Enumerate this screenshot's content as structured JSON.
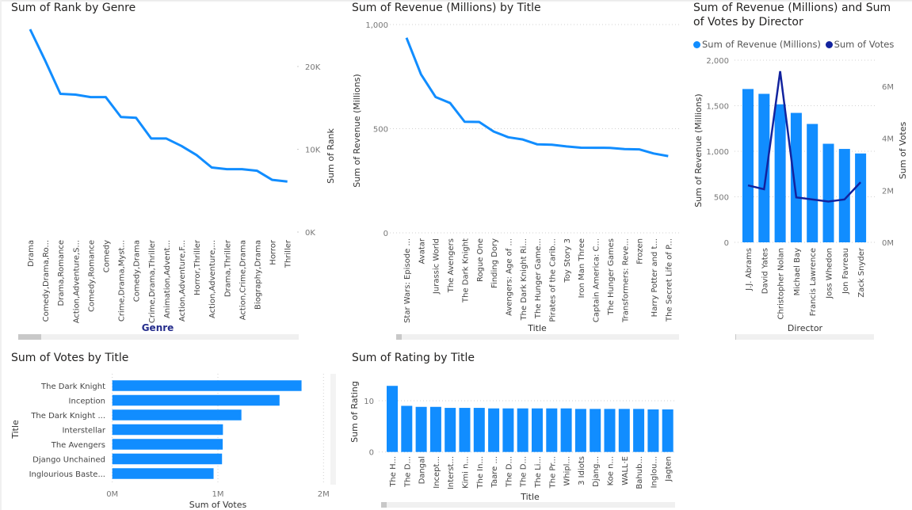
{
  "colors": {
    "bar": "#118DFF",
    "line": "#118DFF",
    "line2": "#12239E",
    "genre_axis_title": "#252D8C"
  },
  "chart_data": [
    {
      "id": "rank_by_genre",
      "type": "line",
      "title": "Sum of Rank by Genre",
      "xlabel": "Genre",
      "ylabel": "Sum of Rank",
      "y_axis_side": "right",
      "ylim": [
        0,
        25000
      ],
      "yticks": [
        {
          "v": 0,
          "label": "0K"
        },
        {
          "v": 10000,
          "label": "10K"
        },
        {
          "v": 20000,
          "label": "20K"
        }
      ],
      "grid": false,
      "categories": [
        "Drama",
        "Comedy,Drama,Ro...",
        "Drama,Romance",
        "Action,Adventure,S...",
        "Comedy,Romance",
        "Comedy",
        "Crime,Drama,Myst...",
        "Comedy,Drama",
        "Crime,Drama,Thriller",
        "Animation,Advent...",
        "Action,Adventure,F...",
        "Horror,Thriller",
        "Action,Adventure,...",
        "Drama,Thriller",
        "Action,Crime,Drama",
        "Biography,Drama",
        "Horror",
        "Thriller"
      ],
      "values": [
        24500,
        20700,
        16700,
        16600,
        16300,
        16300,
        13900,
        13800,
        11300,
        11300,
        10400,
        9300,
        7800,
        7600,
        7600,
        7400,
        6300,
        6100
      ],
      "scrollbar": "horizontal"
    },
    {
      "id": "revenue_by_title",
      "type": "line",
      "title": "Sum of Revenue (Millions) by Title",
      "xlabel": "Title",
      "ylabel": "Sum of Revenue (Millions)",
      "ylim": [
        0,
        1000
      ],
      "yticks": [
        {
          "v": 0,
          "label": "0"
        },
        {
          "v": 500,
          "label": "500"
        },
        {
          "v": 1000,
          "label": "1,000"
        }
      ],
      "grid": true,
      "categories": [
        "Star Wars: Episode ...",
        "Avatar",
        "Jurassic World",
        "The Avengers",
        "The Dark Knight",
        "Rogue One",
        "Finding Dory",
        "Avengers: Age of ...",
        "The Dark Knight Ri...",
        "The Hunger Game...",
        "Pirates of the Carib...",
        "Toy Story 3",
        "Iron Man Three",
        "Captain America: C...",
        "The Hunger Games",
        "Transformers: Reve...",
        "Frozen",
        "Harry Potter and t...",
        "The Secret Life of P..."
      ],
      "values": [
        936.6,
        760.5,
        652.2,
        623.3,
        533.3,
        532.2,
        486.3,
        458.9,
        448.1,
        424.7,
        423.0,
        415.0,
        408.9,
        408.1,
        408.0,
        402.1,
        400.7,
        381.0,
        368.3
      ],
      "scrollbar": "horizontal"
    },
    {
      "id": "revenue_votes_by_director",
      "type": "bar",
      "title": "Sum of Revenue (Millions) and Sum of Votes by Director",
      "xlabel": "Director",
      "ylabel": "Sum of Revenue (Millions)",
      "y2label": "Sum of Votes",
      "legend": "top-left",
      "ylim": [
        0,
        2000
      ],
      "yticks": [
        {
          "v": 0,
          "label": "0"
        },
        {
          "v": 500,
          "label": "500"
        },
        {
          "v": 1000,
          "label": "1,000"
        },
        {
          "v": 1500,
          "label": "1,500"
        },
        {
          "v": 2000,
          "label": "2,000"
        }
      ],
      "y2lim": [
        0,
        7000000
      ],
      "y2ticks": [
        {
          "v": 0,
          "label": "0M"
        },
        {
          "v": 2000000,
          "label": "2M"
        },
        {
          "v": 4000000,
          "label": "4M"
        },
        {
          "v": 6000000,
          "label": "6M"
        }
      ],
      "grid": true,
      "categories": [
        "J.J. Abrams",
        "David Yates",
        "Christopher Nolan",
        "Michael Bay",
        "Francis Lawrence",
        "Joss Whedon",
        "Jon Favreau",
        "Zack Snyder"
      ],
      "series": [
        {
          "name": "Sum of Revenue (Millions)",
          "kind": "bar",
          "axis": "left",
          "values": [
            1683.45,
            1630.51,
            1515.47,
            1421.32,
            1299.81,
            1082.27,
            1025.6,
            975.74
          ]
        },
        {
          "name": "Sum of Votes",
          "kind": "line",
          "axis": "right",
          "values": [
            2190000,
            2040000,
            6580000,
            1730000,
            1650000,
            1570000,
            1650000,
            2310000
          ]
        }
      ],
      "scrollbar": "horizontal"
    },
    {
      "id": "votes_by_title",
      "type": "bar",
      "orientation": "horizontal",
      "title": "Sum of Votes by Title",
      "xlabel": "Sum of Votes",
      "ylabel": "Title",
      "xlim": [
        0,
        2000000
      ],
      "xticks": [
        {
          "v": 0,
          "label": "0M"
        },
        {
          "v": 1000000,
          "label": "1M"
        },
        {
          "v": 2000000,
          "label": "2M"
        }
      ],
      "grid": true,
      "categories": [
        "The Dark Knight",
        "Inception",
        "The Dark Knight ...",
        "Interstellar",
        "The Avengers",
        "Django Unchained",
        "Inglourious Baste..."
      ],
      "values": [
        1791916,
        1583625,
        1222645,
        1047747,
        1045588,
        1039115,
        959065
      ],
      "scrollbar": "vertical"
    },
    {
      "id": "rating_by_title",
      "type": "bar",
      "title": "Sum of Rating by Title",
      "xlabel": "Title",
      "ylabel": "Sum of Rating",
      "ylim": [
        0,
        13.5
      ],
      "yticks": [
        {
          "v": 0,
          "label": "0"
        },
        {
          "v": 10,
          "label": "10"
        }
      ],
      "grid": true,
      "categories": [
        "The H...",
        "The D...",
        "Dangal",
        "Incept...",
        "Interst...",
        "Kimi n...",
        "The In...",
        "Taare ...",
        "The D...",
        "The D...",
        "The Li...",
        "The Pr...",
        "Whipl...",
        "3 Idiots",
        "Djang...",
        "Koe n...",
        "WALL·E",
        "Bahub...",
        "Inglou...",
        "Jagten"
      ],
      "values": [
        12.9,
        9.0,
        8.8,
        8.8,
        8.6,
        8.6,
        8.6,
        8.5,
        8.5,
        8.5,
        8.5,
        8.5,
        8.5,
        8.4,
        8.4,
        8.4,
        8.4,
        8.4,
        8.3,
        8.3
      ],
      "scrollbar": "horizontal"
    }
  ]
}
